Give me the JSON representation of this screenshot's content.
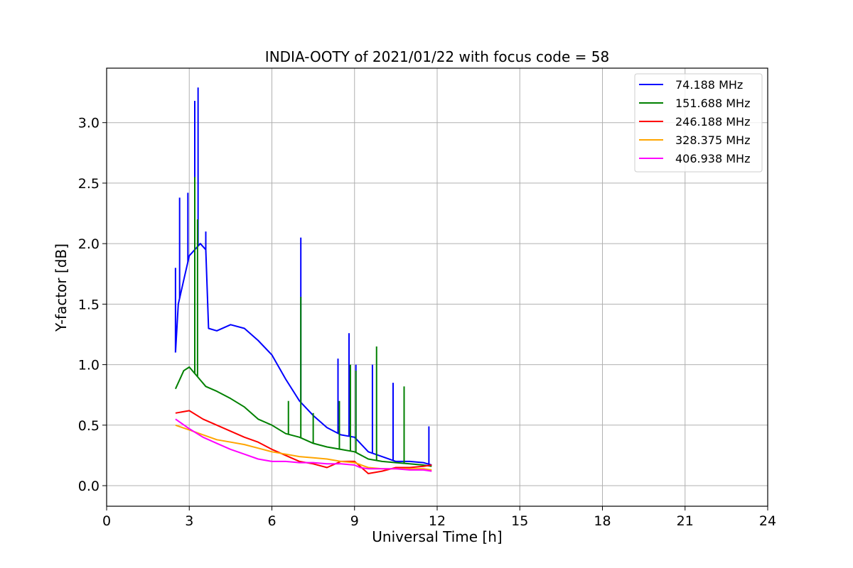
{
  "chart_data": {
    "type": "line",
    "title": "INDIA-OOTY of 2021/01/22 with focus code = 58",
    "xlabel": "Universal Time [h]",
    "ylabel": "Y-factor [dB]",
    "xlim": [
      0,
      24
    ],
    "ylim": [
      -0.17,
      3.45
    ],
    "xticks": [
      0,
      3,
      6,
      9,
      12,
      15,
      18,
      21,
      24
    ],
    "yticks": [
      0.0,
      0.5,
      1.0,
      1.5,
      2.0,
      2.5,
      3.0
    ],
    "ytick_labels": [
      "0.0",
      "0.5",
      "1.0",
      "1.5",
      "2.0",
      "2.5",
      "3.0"
    ],
    "grid": true,
    "legend_position": "top-right",
    "series": [
      {
        "name": " 74.188 MHz",
        "color": "#0000ff",
        "x": [
          2.5,
          2.6,
          2.8,
          3.0,
          3.2,
          3.4,
          3.6,
          3.7,
          4.0,
          4.5,
          5.0,
          5.5,
          6.0,
          6.5,
          7.0,
          7.5,
          8.0,
          8.5,
          9.0,
          9.5,
          10.0,
          10.5,
          11.0,
          11.5,
          11.8
        ],
        "y": [
          1.1,
          1.5,
          1.7,
          1.9,
          1.95,
          2.0,
          1.95,
          1.3,
          1.28,
          1.33,
          1.3,
          1.2,
          1.08,
          0.88,
          0.7,
          0.58,
          0.48,
          0.42,
          0.4,
          0.28,
          0.24,
          0.2,
          0.2,
          0.19,
          0.17
        ],
        "spikes": [
          [
            2.5,
            1.8
          ],
          [
            2.65,
            2.38
          ],
          [
            2.95,
            2.42
          ],
          [
            3.2,
            3.18
          ],
          [
            3.32,
            3.29
          ],
          [
            3.6,
            2.1
          ],
          [
            7.05,
            2.05
          ],
          [
            8.4,
            1.05
          ],
          [
            8.8,
            1.26
          ],
          [
            9.05,
            1.0
          ],
          [
            9.65,
            1.0
          ],
          [
            10.4,
            0.85
          ],
          [
            11.7,
            0.49
          ]
        ]
      },
      {
        "name": "151.688 MHz",
        "color": "#008000",
        "x": [
          2.5,
          2.8,
          3.0,
          3.3,
          3.6,
          4.0,
          4.5,
          5.0,
          5.5,
          6.0,
          6.5,
          7.0,
          7.5,
          8.0,
          8.5,
          9.0,
          9.5,
          10.0,
          10.5,
          11.0,
          11.5,
          11.8
        ],
        "y": [
          0.8,
          0.95,
          0.98,
          0.9,
          0.82,
          0.78,
          0.72,
          0.65,
          0.55,
          0.5,
          0.43,
          0.4,
          0.35,
          0.32,
          0.3,
          0.28,
          0.22,
          0.2,
          0.19,
          0.18,
          0.17,
          0.16
        ],
        "spikes": [
          [
            3.2,
            2.55
          ],
          [
            3.3,
            2.2
          ],
          [
            6.6,
            0.7
          ],
          [
            7.05,
            1.56
          ],
          [
            7.5,
            0.6
          ],
          [
            8.45,
            0.7
          ],
          [
            8.85,
            1.0
          ],
          [
            9.05,
            0.95
          ],
          [
            9.8,
            1.15
          ],
          [
            10.8,
            0.82
          ]
        ]
      },
      {
        "name": "246.188 MHz",
        "color": "#ff0000",
        "x": [
          2.5,
          3.0,
          3.5,
          4.0,
          4.5,
          5.0,
          5.5,
          6.0,
          6.5,
          7.0,
          7.5,
          8.0,
          8.5,
          9.0,
          9.5,
          10.0,
          10.5,
          11.0,
          11.5,
          11.8
        ],
        "y": [
          0.6,
          0.62,
          0.55,
          0.5,
          0.45,
          0.4,
          0.36,
          0.3,
          0.25,
          0.2,
          0.18,
          0.15,
          0.2,
          0.2,
          0.1,
          0.12,
          0.15,
          0.15,
          0.16,
          0.17
        ]
      },
      {
        "name": "328.375 MHz",
        "color": "#ffa500",
        "x": [
          2.5,
          3.0,
          3.5,
          4.0,
          4.5,
          5.0,
          5.5,
          6.0,
          6.5,
          7.0,
          7.5,
          8.0,
          8.5,
          9.0,
          9.5,
          10.0,
          10.5,
          11.0,
          11.5,
          11.8
        ],
        "y": [
          0.5,
          0.46,
          0.42,
          0.38,
          0.36,
          0.34,
          0.31,
          0.28,
          0.26,
          0.24,
          0.23,
          0.22,
          0.2,
          0.19,
          0.15,
          0.14,
          0.14,
          0.14,
          0.14,
          0.13
        ]
      },
      {
        "name": "406.938 MHz",
        "color": "#ff00ff",
        "x": [
          2.5,
          3.0,
          3.5,
          4.0,
          4.5,
          5.0,
          5.5,
          6.0,
          6.5,
          7.0,
          7.5,
          8.0,
          8.5,
          9.0,
          9.2,
          9.5,
          10.0,
          10.5,
          11.0,
          11.5,
          11.8
        ],
        "y": [
          0.55,
          0.47,
          0.4,
          0.35,
          0.3,
          0.26,
          0.22,
          0.2,
          0.2,
          0.19,
          0.19,
          0.18,
          0.18,
          0.17,
          0.15,
          0.14,
          0.14,
          0.14,
          0.13,
          0.13,
          0.12
        ]
      }
    ]
  }
}
